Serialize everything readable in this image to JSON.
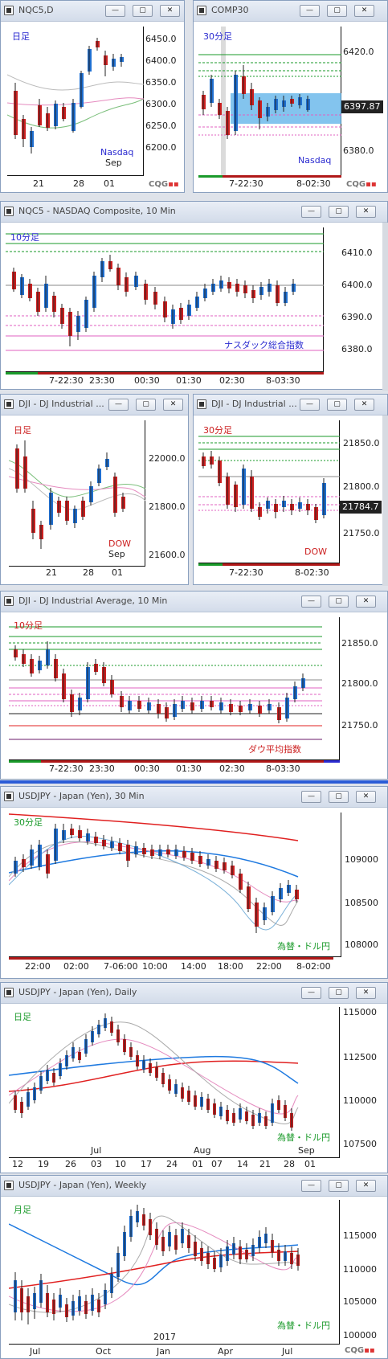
{
  "windows": [
    {
      "title": "NQC5,D",
      "period": "日足",
      "region_label": "Nasdaq",
      "prices": [
        "6450.0",
        "6400.0",
        "6350.0",
        "6300.0",
        "6250.0",
        "6200.0"
      ],
      "dates": [
        "21",
        "28",
        "01"
      ],
      "sub": "Sep"
    },
    {
      "title": "COMP30",
      "period": "30分足",
      "region_label": "Nasdaq",
      "prices": [
        "6420.0",
        "6400.0",
        "6380.0"
      ],
      "current": "6397.87",
      "dates": [
        "7-22:30",
        "8-02:30"
      ]
    },
    {
      "title": "NQC5 - NASDAQ Composite, 10 Min",
      "period": "10分足",
      "region_label": "ナスダック総合指数",
      "prices": [
        "6410.0",
        "6400.0",
        "6390.0",
        "6380.0"
      ],
      "dates": [
        "7-22:30",
        "23:30",
        "00:30",
        "01:30",
        "02:30",
        "8-03:30"
      ]
    },
    {
      "title": "DJI - DJ Industrial ...",
      "period": "日足",
      "region_label": "DOW",
      "prices": [
        "22000.0",
        "21800.0",
        "21600.0"
      ],
      "dates": [
        "21",
        "28",
        "01"
      ],
      "sub": "Sep"
    },
    {
      "title": "DJI - DJ Industrial ...",
      "period": "30分足",
      "region_label": "DOW",
      "prices": [
        "21850.0",
        "21800.0",
        "21750.0"
      ],
      "current": "21784.7",
      "dates": [
        "7-22:30",
        "8-02:30"
      ]
    },
    {
      "title": "DJI - DJ Industrial Average, 10 Min",
      "period": "10分足",
      "region_label": "ダウ平均指数",
      "prices": [
        "21850.0",
        "21800.0",
        "21750.0"
      ],
      "dates": [
        "7-22:30",
        "23:30",
        "00:30",
        "01:30",
        "02:30",
        "8-03:30"
      ]
    },
    {
      "title": "USDJPY - Japan (Yen), 30 Min",
      "period": "30分足",
      "region_label": "為替・ドル円",
      "prices": [
        "109000",
        "108500",
        "108000"
      ],
      "dates": [
        "22:00",
        "02:00",
        "7-06:00",
        "10:00",
        "14:00",
        "18:00",
        "22:00",
        "8-02:00"
      ]
    },
    {
      "title": "USDJPY - Japan (Yen), Daily",
      "period": "日足",
      "region_label": "為替・ドル円",
      "prices": [
        "115000",
        "112500",
        "110000",
        "107500"
      ],
      "dates": [
        "12",
        "19",
        "26",
        "03",
        "10",
        "17",
        "24",
        "01",
        "07",
        "14",
        "21",
        "28",
        "01"
      ],
      "months": [
        "Jul",
        "Aug",
        "Sep"
      ]
    },
    {
      "title": "USDJPY - Japan (Yen), Weekly",
      "period": "月足",
      "region_label": "為替・ドル円",
      "prices": [
        "115000",
        "110000",
        "105000",
        "100000"
      ],
      "dates": [
        "Jul",
        "Oct",
        "Jan",
        "Apr",
        "Jul"
      ],
      "year": "2017"
    }
  ],
  "buttons": {
    "minimize": "—",
    "restore": "▢",
    "close": "✕"
  },
  "brand": {
    "cqg_a": "CQG",
    "cqg_b": "Q"
  },
  "colors": {
    "up": "#1f6fd0",
    "down": "#cc2020",
    "green": "#1a9a2a",
    "pink": "#e060c0",
    "red": "#e02020",
    "blue": "#2a5bd7"
  }
}
